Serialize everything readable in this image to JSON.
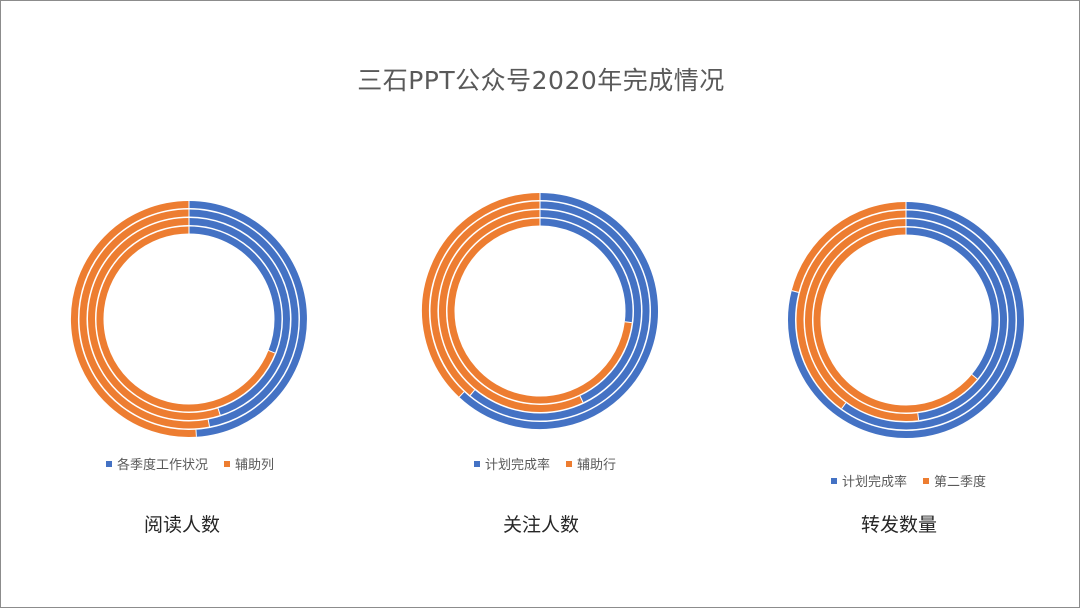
{
  "title": "三石PPT公众号2020年完成情况",
  "colors": {
    "series_blue": "#4472c4",
    "series_orange": "#ed7d31"
  },
  "chart_data": [
    {
      "type": "pie",
      "variant": "multi-ring-donut",
      "caption": "阅读人数",
      "rings": 4,
      "legend": [
        "各季度工作状况",
        "辅助列"
      ],
      "rings_values": [
        [
          0.49,
          0.51
        ],
        [
          0.47,
          0.53
        ],
        [
          0.45,
          0.55
        ],
        [
          0.31,
          0.69
        ]
      ]
    },
    {
      "type": "pie",
      "variant": "multi-ring-donut",
      "caption": "关注人数",
      "rings": 4,
      "legend": [
        "计划完成率",
        "辅助行"
      ],
      "rings_values": [
        [
          0.62,
          0.38
        ],
        [
          0.61,
          0.39
        ],
        [
          0.43,
          0.57
        ],
        [
          0.27,
          0.73
        ]
      ]
    },
    {
      "type": "pie",
      "variant": "multi-ring-donut",
      "caption": "转发数量",
      "rings": 4,
      "legend": [
        "计划完成率",
        "第二季度"
      ],
      "rings_values": [
        [
          0.79,
          0.21
        ],
        [
          0.6,
          0.4
        ],
        [
          0.48,
          0.52
        ],
        [
          0.36,
          0.64
        ]
      ]
    }
  ]
}
